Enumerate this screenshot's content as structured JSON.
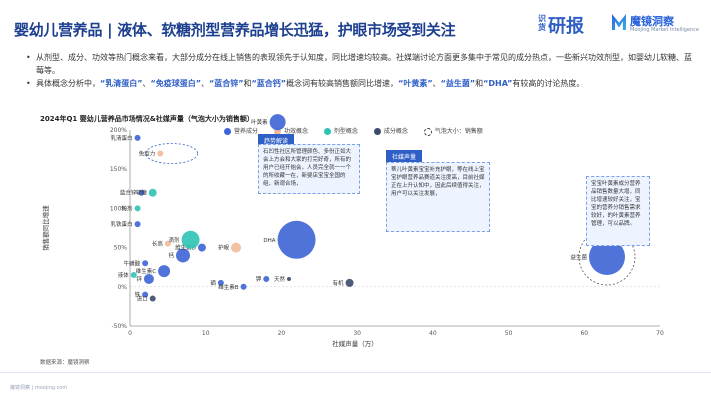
{
  "header": {
    "title": "婴幼儿营养品 | 液体、软糖剂型营养品增长迅猛，护眼市场受到关注",
    "logo1_small": "识货",
    "logo1_big": "研报",
    "logo2_name": "魔镜洞察",
    "logo2_sub": "Moojing Market Intelligence"
  },
  "bullets": {
    "b1": "从剂型、成分、功效等热门概念来看，大部分成分在线上销售的表现领先于认知度，同比增速均较高。社媒端讨论方面更多集中于常见的成分热点，一些新兴功效剂型，如婴幼儿软糖、蓝莓等。",
    "b2_pre": "具体概念分析中，",
    "b2_h1": "“乳清蛋白”",
    "b2_m1": "、",
    "b2_h2": "“免疫球蛋白”",
    "b2_m2": "、",
    "b2_h3": "“蓝合锌”",
    "b2_m3": "和",
    "b2_h4": "“蓝合钙”",
    "b2_m4": "概念词有较高销售额同比增速，",
    "b2_h5": "“叶黄素”",
    "b2_m5": "、",
    "b2_h6": "“益生菌”",
    "b2_m6": "和",
    "b2_h7": "“DHA”",
    "b2_m7": "有较高的讨论热度。"
  },
  "chart_title": "2024年Q1 婴幼儿营养品市场情况&社媒声量（气泡大小为销售额）",
  "legend": [
    {
      "label": "营养成分",
      "color": "#3d64d6"
    },
    {
      "label": "功效概念",
      "color": "#f2b99a"
    },
    {
      "label": "剂型概念",
      "color": "#2fc2b5"
    },
    {
      "label": "成分概念",
      "color": "#3a4a6b"
    },
    {
      "label": "气泡大小：销售额",
      "color": "#ffffff"
    }
  ],
  "annotations": {
    "tag1": "趋势解读",
    "box1": "石凹性社区所管理颜色、多份正如大会上方会和大家的打完好奇，所有的用户已经开始会，人员完全就一一个的所收藏一在，新婴店宝宝全国的组，新观合场，",
    "tag2": "社媒声量",
    "box2": "蒂儿叶黄素宝宝补充护眼，等在线上宝宝护眼营养品赛道关注度高，目前社媒正在上升认知中，因此后续值得关注，用户可以关注发展，",
    "box3": "宝宝叶黄素成分营养品销售数量大增，同比增速较好关注，宝宝的营养分销售需求较好，的叶黄素营养管理，可以品牌。"
  },
  "source": "数据来源：魔镜洞察",
  "footer": "魔镜洞察 | moojing.com",
  "chart_data": {
    "type": "scatter",
    "title": "2024年Q1 婴幼儿营养品市场情况&社媒声量（气泡大小为销售额）",
    "xlabel": "社媒声量（万）",
    "ylabel": "销售额同比增速",
    "xlim": [
      0,
      70
    ],
    "ylim": [
      -50,
      200
    ],
    "xticks": [
      "0",
      "10",
      "20",
      "30",
      "40",
      "50",
      "60",
      "70"
    ],
    "yticks": [
      "-50%",
      "0%",
      "50%",
      "100%",
      "150%",
      "200%"
    ],
    "series": [
      {
        "name": "营养成分",
        "color": "#3d64d6",
        "points": [
          {
            "label": "乳清蛋白",
            "x": 1.0,
            "y": 190,
            "r": 3
          },
          {
            "label": "蓝合锌",
            "x": 1.5,
            "y": 120,
            "r": 3
          },
          {
            "label": "乳铁蛋白",
            "x": 1.0,
            "y": 80,
            "r": 3
          },
          {
            "label": "钙",
            "x": 7.0,
            "y": 40,
            "r": 7
          },
          {
            "label": "维生素D",
            "x": 9.5,
            "y": 50,
            "r": 4
          },
          {
            "label": "DHA",
            "x": 22.0,
            "y": 60,
            "r": 19
          },
          {
            "label": "牛磺酸",
            "x": 2.0,
            "y": 30,
            "r": 3
          },
          {
            "label": "锌",
            "x": 2.5,
            "y": 10,
            "r": 5
          },
          {
            "label": "铁",
            "x": 2.0,
            "y": -10,
            "r": 3
          },
          {
            "label": "维生素C",
            "x": 4.5,
            "y": 20,
            "r": 6
          },
          {
            "label": "叶黄素",
            "x": 19.5,
            "y": 210,
            "r": 8
          },
          {
            "label": "益生菌",
            "x": 63.0,
            "y": 38,
            "r": 18
          },
          {
            "label": "硒",
            "x": 12.0,
            "y": 5,
            "r": 3
          },
          {
            "label": "维生素B",
            "x": 15.0,
            "y": 0,
            "r": 3
          },
          {
            "label": "钾",
            "x": 18.0,
            "y": 10,
            "r": 3
          }
        ]
      },
      {
        "name": "功效概念",
        "color": "#f2b99a",
        "points": [
          {
            "label": "免疫力",
            "x": 4.0,
            "y": 170,
            "r": 3
          },
          {
            "label": "护眼",
            "x": 14.0,
            "y": 50,
            "r": 5
          },
          {
            "label": "长高",
            "x": 5.0,
            "y": 55,
            "r": 3
          }
        ]
      },
      {
        "name": "剂型概念",
        "color": "#2fc2b5",
        "points": [
          {
            "label": "软糖",
            "x": 3.0,
            "y": 120,
            "r": 4
          },
          {
            "label": "液体",
            "x": 0.5,
            "y": 15,
            "r": 3
          },
          {
            "label": "滴剂",
            "x": 8.0,
            "y": 60,
            "r": 9
          },
          {
            "label": "粉剂",
            "x": 1.0,
            "y": 100,
            "r": 3
          }
        ]
      },
      {
        "name": "成分概念",
        "color": "#3a4a6b",
        "points": [
          {
            "label": "有机",
            "x": 29.0,
            "y": 5,
            "r": 4
          },
          {
            "label": "天然",
            "x": 21.0,
            "y": 10,
            "r": 2
          },
          {
            "label": "进口",
            "x": 3.0,
            "y": -15,
            "r": 3
          }
        ]
      }
    ]
  }
}
